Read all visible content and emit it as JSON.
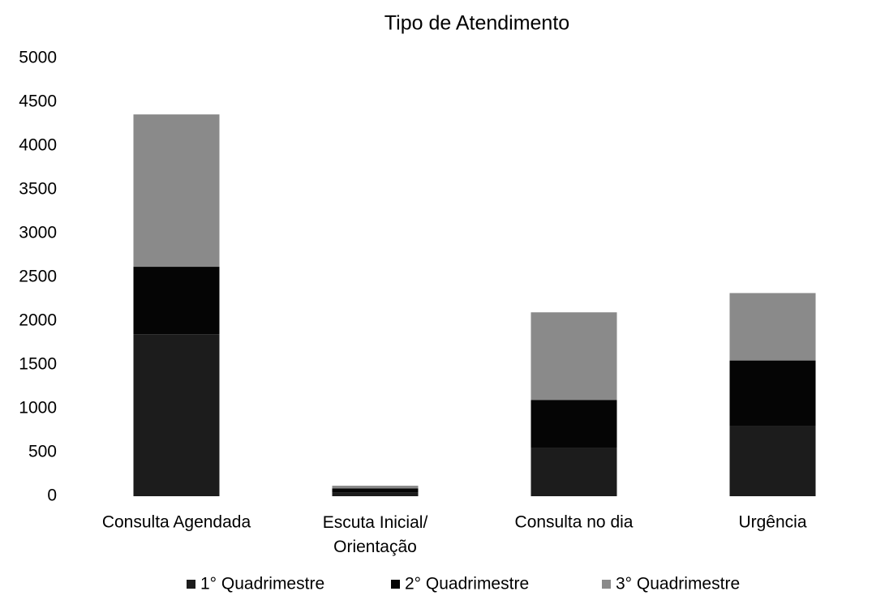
{
  "chart_data": {
    "type": "stacked_bar",
    "title": "Tipo de Atendimento",
    "categories": [
      "Consulta Agendada",
      "Escuta Inicial/\nOrientação",
      "Consulta no dia",
      "Urgência"
    ],
    "series": [
      {
        "name": "1° Quadrimestre",
        "color": "#1c1c1c",
        "values": [
          1850,
          40,
          550,
          800
        ]
      },
      {
        "name": "2° Quadrimestre",
        "color": "#050505",
        "values": [
          770,
          50,
          550,
          750
        ]
      },
      {
        "name": "3° Quadrimestre",
        "color": "#8a8a8a",
        "values": [
          1740,
          30,
          1000,
          770
        ]
      }
    ],
    "ylim": [
      0,
      5000
    ],
    "yticks": [
      0,
      500,
      1000,
      1500,
      2000,
      2500,
      3000,
      3500,
      4000,
      4500,
      5000
    ],
    "grid": false,
    "legend": "bottom"
  }
}
